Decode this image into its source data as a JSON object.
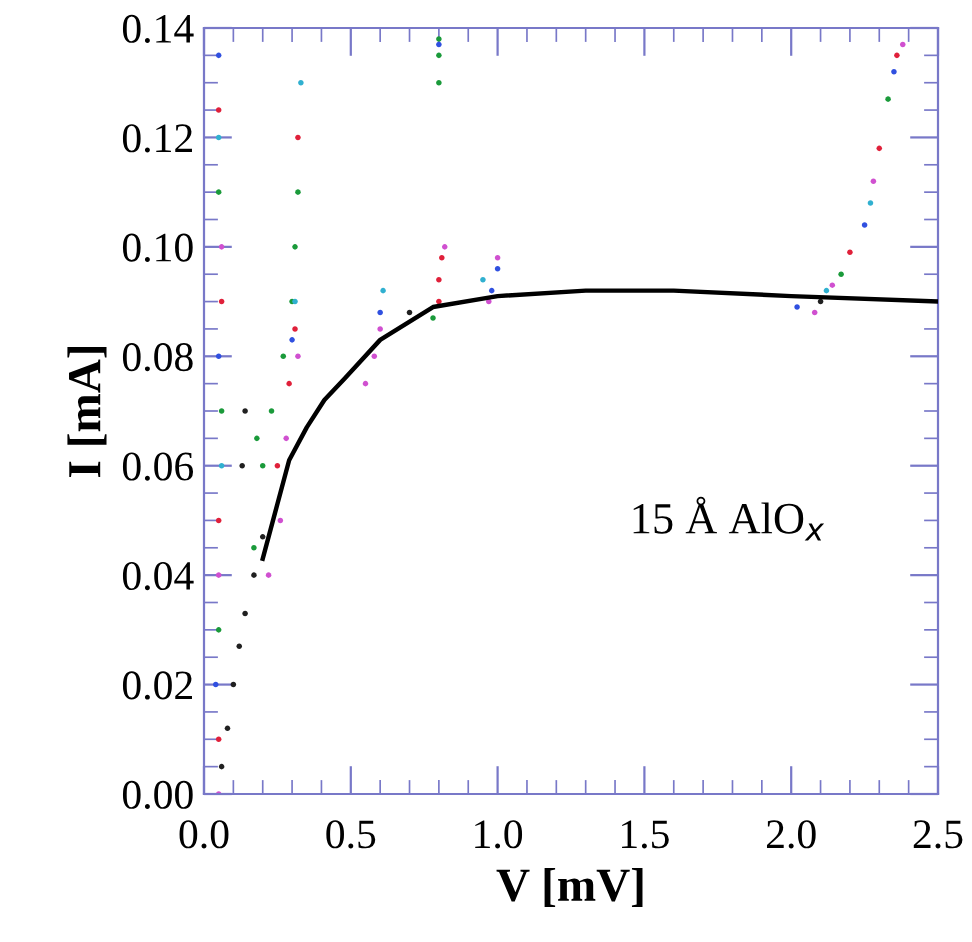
{
  "chart_data": {
    "type": "scatter",
    "xlabel": "V [mV]",
    "ylabel": "I [mA]",
    "xlim": [
      0,
      2.5
    ],
    "ylim": [
      0,
      0.14
    ],
    "xticks": [
      {
        "value": 0,
        "label": "0.0"
      },
      0.5,
      {
        "value": 1,
        "label": "1.0"
      },
      1.5,
      {
        "value": 2,
        "label": "2.0"
      },
      2.5
    ],
    "yticks": [
      {
        "value": 0,
        "label": "0.00"
      },
      0.02,
      0.04,
      0.06,
      0.08,
      {
        "value": 0.1,
        "label": "0.10"
      },
      0.12,
      0.14
    ],
    "marker": "circle",
    "annotations": [
      "15 Å AlO$_{x}$"
    ],
    "series": [
      {
        "color": "#e0203a",
        "x": [
          0.05,
          0.05,
          0.06,
          0.05,
          0.25,
          0.29,
          0.31,
          0.32,
          0.8,
          0.8,
          0.81,
          2.2,
          2.3,
          2.36
        ],
        "values": [
          0.01,
          0.05,
          0.09,
          0.125,
          0.06,
          0.075,
          0.085,
          0.12,
          0.09,
          0.094,
          0.098,
          0.099,
          0.118,
          0.135
        ]
      },
      {
        "color": "#1a9a3a",
        "x": [
          0.05,
          0.06,
          0.05,
          0.17,
          0.2,
          0.23,
          0.27,
          0.3,
          0.31,
          0.32,
          0.18,
          0.78,
          0.8,
          0.8,
          0.8,
          2.17,
          2.33
        ],
        "values": [
          0.03,
          0.07,
          0.11,
          0.045,
          0.06,
          0.07,
          0.08,
          0.09,
          0.1,
          0.11,
          0.065,
          0.087,
          0.13,
          0.135,
          0.138,
          0.095,
          0.127
        ]
      },
      {
        "color": "#3050e0",
        "x": [
          0.04,
          0.05,
          0.05,
          0.3,
          0.98,
          1.0,
          0.6,
          2.02,
          2.25,
          2.35,
          0.8
        ],
        "values": [
          0.02,
          0.08,
          0.135,
          0.083,
          0.092,
          0.096,
          0.088,
          0.089,
          0.104,
          0.132,
          0.137
        ]
      },
      {
        "color": "#d050d0",
        "x": [
          0.05,
          0.06,
          0.05,
          0.22,
          0.26,
          0.28,
          0.32,
          0.55,
          0.58,
          0.6,
          0.82,
          0.97,
          1.0,
          2.08,
          2.14,
          2.28,
          2.38
        ],
        "values": [
          0.04,
          0.1,
          0.0,
          0.04,
          0.05,
          0.065,
          0.08,
          0.075,
          0.08,
          0.085,
          0.1,
          0.09,
          0.098,
          0.088,
          0.093,
          0.112,
          0.137
        ]
      },
      {
        "color": "#30b0d0",
        "x": [
          0.06,
          0.05,
          0.33,
          0.31,
          0.61,
          0.95,
          2.12,
          2.27
        ],
        "values": [
          0.06,
          0.12,
          0.13,
          0.09,
          0.092,
          0.094,
          0.092,
          0.108
        ]
      },
      {
        "color": "#202020",
        "x": [
          0.06,
          0.08,
          0.1,
          0.12,
          0.14,
          0.17,
          0.2,
          0.13,
          0.14,
          0.7,
          2.1
        ],
        "values": [
          0.005,
          0.012,
          0.02,
          0.027,
          0.033,
          0.04,
          0.047,
          0.06,
          0.07,
          0.088,
          0.09
        ]
      },
      {
        "type": "line",
        "marker": "none",
        "color": "#000000",
        "x": [
          0.2,
          0.25,
          0.29,
          0.35,
          0.41,
          0.48,
          0.6,
          0.78,
          1.0,
          1.3,
          1.6,
          2.0,
          2.5
        ],
        "values": [
          0.043,
          0.053,
          0.061,
          0.067,
          0.072,
          0.076,
          0.083,
          0.089,
          0.091,
          0.092,
          0.092,
          0.091,
          0.09
        ]
      }
    ]
  }
}
